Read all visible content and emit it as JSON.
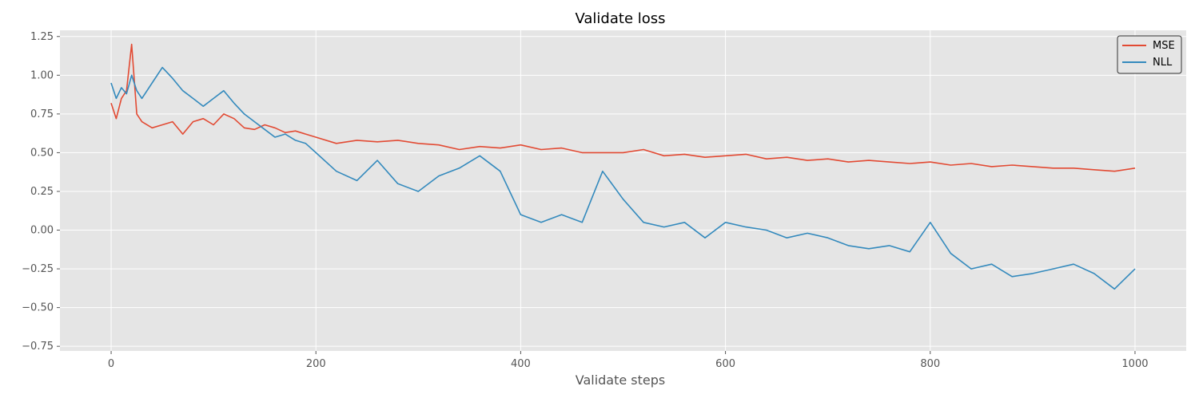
{
  "chart_data": {
    "type": "line",
    "title": "Validate loss",
    "xlabel": "Validate steps",
    "ylabel": "",
    "xlim": [
      -50,
      1050
    ],
    "ylim": [
      -0.78,
      1.29
    ],
    "xticks": [
      0,
      200,
      400,
      600,
      800,
      1000
    ],
    "xtick_labels": [
      "0",
      "200",
      "400",
      "600",
      "800",
      "1000"
    ],
    "yticks": [
      -0.75,
      -0.5,
      -0.25,
      0.0,
      0.25,
      0.5,
      0.75,
      1.0,
      1.25
    ],
    "ytick_labels": [
      "−0.75",
      "−0.50",
      "−0.25",
      "0.00",
      "0.25",
      "0.50",
      "0.75",
      "1.00",
      "1.25"
    ],
    "grid": true,
    "legend_position": "top-right",
    "colors": {
      "background": "#e5e5e5",
      "grid": "#ffffff",
      "MSE": "#e24a33",
      "NLL": "#348abd"
    },
    "series": [
      {
        "name": "MSE",
        "color": "#e24a33",
        "x": [
          0,
          5,
          10,
          15,
          20,
          25,
          30,
          40,
          50,
          60,
          70,
          80,
          90,
          100,
          110,
          120,
          130,
          140,
          150,
          160,
          170,
          180,
          190,
          200,
          220,
          240,
          260,
          280,
          300,
          320,
          340,
          360,
          380,
          400,
          420,
          440,
          460,
          480,
          500,
          520,
          540,
          560,
          580,
          600,
          620,
          640,
          660,
          680,
          700,
          720,
          740,
          760,
          780,
          800,
          820,
          840,
          860,
          880,
          900,
          920,
          940,
          960,
          980,
          1000
        ],
        "y": [
          0.82,
          0.72,
          0.85,
          0.9,
          1.2,
          0.75,
          0.7,
          0.66,
          0.68,
          0.7,
          0.62,
          0.7,
          0.72,
          0.68,
          0.75,
          0.72,
          0.66,
          0.65,
          0.68,
          0.66,
          0.63,
          0.64,
          0.62,
          0.6,
          0.56,
          0.58,
          0.57,
          0.58,
          0.56,
          0.55,
          0.52,
          0.54,
          0.53,
          0.55,
          0.52,
          0.53,
          0.5,
          0.5,
          0.5,
          0.52,
          0.48,
          0.49,
          0.47,
          0.48,
          0.49,
          0.46,
          0.47,
          0.45,
          0.46,
          0.44,
          0.45,
          0.44,
          0.43,
          0.44,
          0.42,
          0.43,
          0.41,
          0.42,
          0.41,
          0.4,
          0.4,
          0.39,
          0.38,
          0.4
        ]
      },
      {
        "name": "NLL",
        "color": "#348abd",
        "x": [
          0,
          5,
          10,
          15,
          20,
          25,
          30,
          40,
          50,
          60,
          70,
          80,
          90,
          100,
          110,
          120,
          130,
          140,
          150,
          160,
          170,
          180,
          190,
          200,
          220,
          240,
          260,
          280,
          300,
          320,
          340,
          360,
          380,
          400,
          420,
          440,
          460,
          480,
          500,
          520,
          540,
          560,
          580,
          600,
          620,
          640,
          660,
          680,
          700,
          720,
          740,
          760,
          780,
          800,
          820,
          840,
          860,
          880,
          900,
          920,
          940,
          960,
          980,
          1000
        ],
        "y": [
          0.95,
          0.85,
          0.92,
          0.88,
          1.0,
          0.9,
          0.85,
          0.95,
          1.05,
          0.98,
          0.9,
          0.85,
          0.8,
          0.85,
          0.9,
          0.82,
          0.75,
          0.7,
          0.65,
          0.6,
          0.62,
          0.58,
          0.56,
          0.5,
          0.38,
          0.32,
          0.45,
          0.3,
          0.25,
          0.35,
          0.4,
          0.48,
          0.38,
          0.1,
          0.05,
          0.1,
          0.05,
          0.38,
          0.2,
          0.05,
          0.02,
          0.05,
          -0.05,
          0.05,
          0.02,
          0.0,
          -0.05,
          -0.02,
          -0.05,
          -0.1,
          -0.12,
          -0.1,
          -0.14,
          0.05,
          -0.15,
          -0.25,
          -0.22,
          -0.3,
          -0.28,
          -0.25,
          -0.22,
          -0.28,
          -0.38,
          -0.25
        ]
      }
    ]
  }
}
